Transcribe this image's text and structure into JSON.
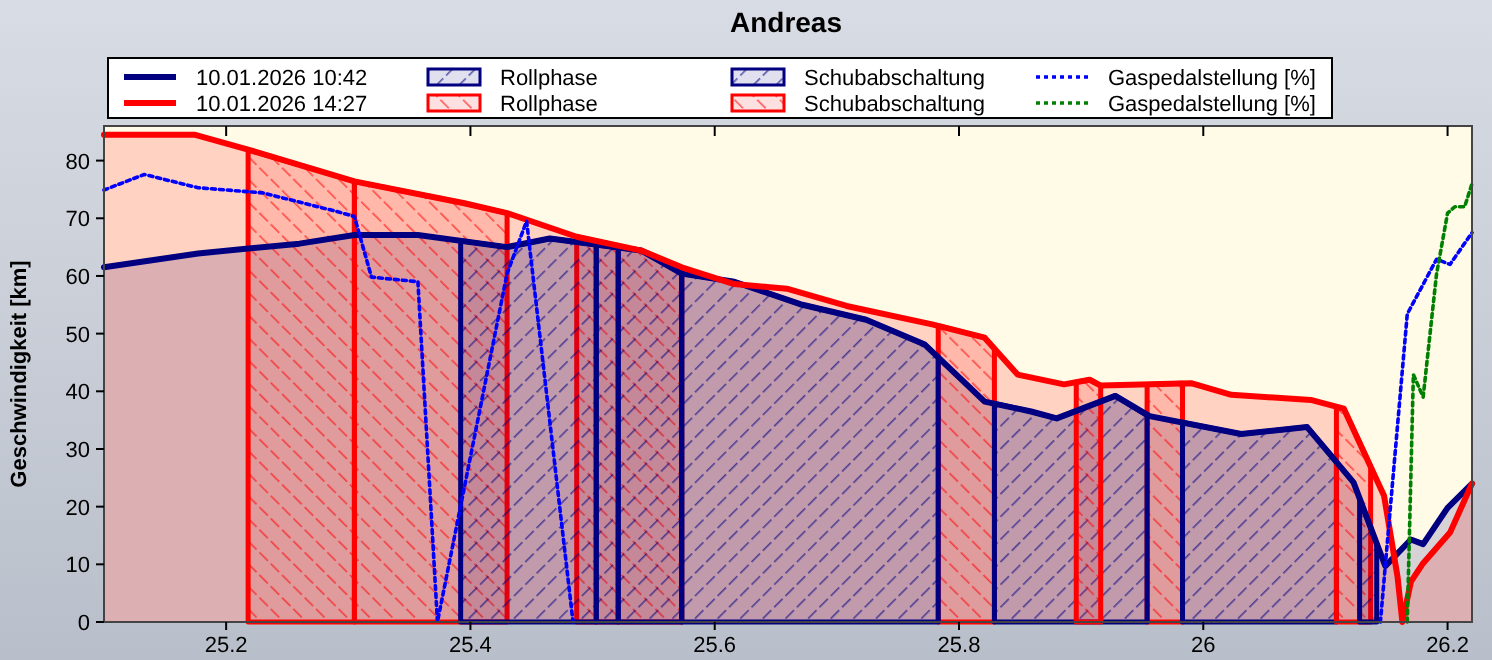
{
  "chart_data": {
    "type": "area",
    "title": "Andreas",
    "ylabel": "Geschwindigkeit [km]",
    "xlim": [
      25.1,
      26.22
    ],
    "xticks": [
      25.2,
      25.4,
      25.6,
      25.8,
      26,
      26.2
    ],
    "ylim": [
      0,
      86
    ],
    "yticks": [
      0,
      10,
      20,
      30,
      40,
      50,
      60,
      70,
      80
    ],
    "grid": false,
    "legend": "top",
    "series": [
      {
        "name": "10.01.2026 10:42",
        "color": "#000080",
        "type": "area",
        "line_style": "solid",
        "x": [
          25.1,
          25.177,
          25.26,
          25.305,
          25.357,
          25.43,
          25.465,
          25.54,
          25.573,
          25.616,
          25.67,
          25.724,
          25.772,
          25.821,
          25.859,
          25.88,
          25.928,
          25.956,
          26.031,
          26.085,
          26.123,
          26.149,
          26.17,
          26.18,
          26.2,
          26.22
        ],
        "values": [
          61.5,
          63.9,
          65.6,
          67.1,
          67.1,
          65,
          66.5,
          64.4,
          60.4,
          59,
          55.1,
          52.4,
          48.1,
          38.2,
          36.5,
          35.3,
          39.2,
          35.7,
          32.6,
          33.8,
          24.2,
          9.7,
          14.3,
          13.5,
          19.8,
          24
        ]
      },
      {
        "name": "10.01.2026 14:27",
        "color": "#ff0000",
        "type": "area",
        "line_style": "solid",
        "x": [
          25.1,
          25.174,
          25.218,
          25.305,
          25.395,
          25.43,
          25.487,
          25.54,
          25.573,
          25.616,
          25.659,
          25.708,
          25.778,
          25.821,
          25.848,
          25.886,
          25.907,
          25.916,
          25.99,
          26.023,
          26.088,
          26.115,
          26.148,
          26.159,
          26.163,
          26.17,
          26.18,
          26.202,
          26.22
        ],
        "values": [
          84.5,
          84.5,
          81.9,
          76.4,
          72.6,
          70.9,
          66.8,
          64.4,
          61.5,
          58.6,
          57.8,
          54.8,
          51.6,
          49.3,
          42.9,
          41.2,
          42,
          41,
          41.4,
          39.4,
          38.5,
          37,
          21.9,
          7.9,
          0,
          7,
          10.2,
          15.5,
          24
        ]
      },
      {
        "name": "Rollphase",
        "color": "#000080",
        "x": [
          25.392,
          25.43,
          25.465,
          25.503,
          25.512,
          25.521,
          25.54,
          25.573,
          25.9,
          26.128,
          26.142
        ],
        "values": [
          66.1,
          65,
          66.5,
          65.4,
          null,
          64.9,
          64.4,
          60.4,
          null,
          21.4,
          13.6
        ]
      },
      {
        "name": "Rollphase",
        "color": "#ff0000",
        "x": [
          25.218,
          25.305,
          25.6,
          25.896,
          25.907,
          25.916,
          26.0,
          26.109,
          26.115,
          26.137
        ],
        "values": [
          81.9,
          76.4,
          null,
          41.6,
          42,
          41,
          null,
          37.3,
          37,
          27
        ]
      },
      {
        "name": "Schubabschaltung",
        "color": "#000080",
        "x": [
          25.503,
          25.521,
          25.55,
          25.573,
          25.616,
          25.67,
          25.724,
          25.772,
          25.783,
          25.8,
          25.829,
          25.859,
          25.88,
          25.928,
          25.954,
          25.97,
          25.983,
          26.031,
          26.085,
          26.109
        ],
        "values": [
          65.4,
          64.9,
          null,
          60.4,
          59,
          55.1,
          52.4,
          48.1,
          45.9,
          null,
          37.9,
          36.5,
          35.3,
          39.2,
          35.8,
          null,
          34.6,
          32.6,
          33.8,
          27.8
        ]
      },
      {
        "name": "Schubabschaltung",
        "color": "#ff0000",
        "x": [
          25.305,
          25.395,
          25.43,
          25.46,
          25.487,
          25.54,
          25.573,
          25.7,
          25.783,
          25.821,
          25.829,
          25.9,
          25.954,
          25.983
        ],
        "values": [
          76.4,
          72.6,
          70.9,
          null,
          66.8,
          64.4,
          61.5,
          null,
          51.4,
          49.3,
          47.4,
          null,
          41.2,
          41.4
        ]
      },
      {
        "name": "Gaspedalstellung [%]",
        "color": "#0000ff",
        "type": "line",
        "line_style": "dotted",
        "x": [
          25.1,
          25.133,
          25.177,
          25.23,
          25.292,
          25.305,
          25.319,
          25.357,
          25.373,
          25.43,
          25.446,
          25.484,
          25.8,
          26.145,
          26.167,
          26.191,
          26.202,
          26.22
        ],
        "values": [
          74.9,
          77.6,
          75.3,
          74.4,
          71.1,
          70.3,
          59.8,
          59,
          0,
          60.4,
          69.5,
          0,
          null,
          0,
          53.4,
          62.9,
          62,
          67.5
        ]
      },
      {
        "name": "Gaspedalstellung [%]",
        "color": "#008000",
        "type": "line",
        "line_style": "dotted",
        "x": [
          26.167,
          26.172,
          26.18,
          26.191,
          26.2,
          26.206,
          26.214,
          26.22
        ],
        "values": [
          0,
          42.9,
          39,
          60.4,
          70.9,
          72,
          72,
          76
        ]
      }
    ]
  }
}
